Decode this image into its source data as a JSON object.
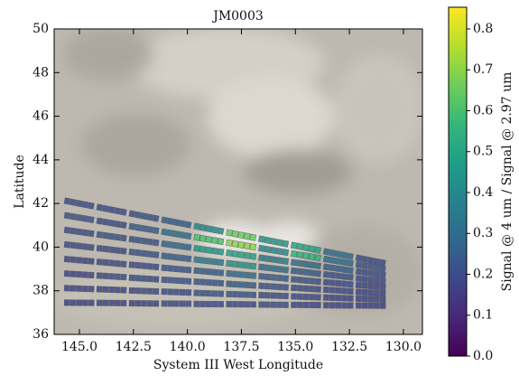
{
  "chart_data": {
    "type": "footprints",
    "title": "JM0003",
    "xlabel": "System III West Longitude",
    "ylabel": "Latitude",
    "xlim": [
      146.17,
      129.12
    ],
    "ylim": [
      36,
      50
    ],
    "xticks": [
      {
        "value": 145,
        "label": "145.0"
      },
      {
        "value": 142.5,
        "label": "142.5"
      },
      {
        "value": 140,
        "label": "140.0"
      },
      {
        "value": 137.5,
        "label": "137.5"
      },
      {
        "value": 135,
        "label": "135.0"
      },
      {
        "value": 132.5,
        "label": "132.5"
      },
      {
        "value": 130,
        "label": "130.0"
      }
    ],
    "yticks": [
      36,
      38,
      40,
      42,
      44,
      46,
      48,
      50
    ],
    "colormap": [
      "#440154",
      "#482878",
      "#3e4989",
      "#31688e",
      "#26828e",
      "#1f9e89",
      "#35b779",
      "#6ece58",
      "#b5de2b",
      "#fde725"
    ],
    "colorbar": {
      "label": "Signal @ 4 um / Signal @ 2.97 um",
      "lim": [
        0,
        0.853
      ],
      "ticks": [
        {
          "value": 0,
          "label": "0.0"
        },
        0.1,
        0.2,
        0.3,
        0.4,
        0.5,
        0.6,
        0.7,
        0.8
      ]
    },
    "rows": [
      {
        "x": [
          145,
          143.5,
          142,
          140.5,
          139,
          137.5,
          136,
          134.5,
          133,
          131.5
        ],
        "y": [
          42.0,
          41.71,
          41.42,
          41.13,
          40.84,
          40.55,
          40.26,
          39.97,
          39.68,
          39.39
        ],
        "values": [
          0.2,
          0.2,
          0.22,
          0.25,
          0.4,
          0.65,
          0.45,
          0.5,
          0.3,
          0.2
        ]
      },
      {
        "x": [
          145,
          143.5,
          142,
          140.5,
          139,
          137.5,
          136,
          134.5,
          133,
          131.5
        ],
        "y": [
          41.35,
          41.1,
          40.85,
          40.6,
          40.35,
          40.1,
          39.85,
          39.6,
          39.35,
          39.1
        ],
        "values": [
          0.22,
          0.2,
          0.25,
          0.3,
          0.6,
          0.7,
          0.4,
          0.55,
          0.3,
          0.22
        ]
      },
      {
        "x": [
          145,
          143.5,
          142,
          140.5,
          139,
          137.5,
          136,
          134.5,
          133,
          131.5
        ],
        "y": [
          40.7,
          40.49,
          40.28,
          40.07,
          39.86,
          39.65,
          39.43,
          39.22,
          39.01,
          38.8
        ],
        "values": [
          0.2,
          0.22,
          0.22,
          0.28,
          0.45,
          0.5,
          0.35,
          0.3,
          0.25,
          0.2
        ]
      },
      {
        "x": [
          145,
          143.5,
          142,
          140.5,
          139,
          137.5,
          136,
          134.5,
          133,
          131.5
        ],
        "y": [
          40.05,
          39.88,
          39.71,
          39.53,
          39.36,
          39.19,
          39.02,
          38.85,
          38.68,
          38.5
        ],
        "values": [
          0.2,
          0.2,
          0.22,
          0.25,
          0.35,
          0.45,
          0.3,
          0.25,
          0.22,
          0.2
        ]
      },
      {
        "x": [
          145,
          143.5,
          142,
          140.5,
          139,
          137.5,
          136,
          134.5,
          133,
          131.5
        ],
        "y": [
          39.4,
          39.27,
          39.14,
          39.0,
          38.87,
          38.74,
          38.61,
          38.47,
          38.34,
          38.21
        ],
        "values": [
          0.18,
          0.2,
          0.2,
          0.22,
          0.25,
          0.3,
          0.25,
          0.22,
          0.2,
          0.18
        ]
      },
      {
        "x": [
          145,
          143.5,
          142,
          140.5,
          139,
          137.5,
          136,
          134.5,
          133,
          131.5
        ],
        "y": [
          38.75,
          38.66,
          38.56,
          38.47,
          38.38,
          38.28,
          38.19,
          38.1,
          38.01,
          37.91
        ],
        "values": [
          0.18,
          0.2,
          0.2,
          0.22,
          0.22,
          0.25,
          0.22,
          0.2,
          0.2,
          0.18
        ]
      },
      {
        "x": [
          145,
          143.5,
          142,
          140.5,
          139,
          137.5,
          136,
          134.5,
          133,
          131.5
        ],
        "y": [
          38.1,
          38.05,
          37.99,
          37.94,
          37.88,
          37.83,
          37.78,
          37.72,
          37.67,
          37.62
        ],
        "values": [
          0.18,
          0.18,
          0.2,
          0.2,
          0.22,
          0.22,
          0.2,
          0.2,
          0.18,
          0.18
        ]
      },
      {
        "x": [
          145,
          143.5,
          142,
          140.5,
          139,
          137.5,
          136,
          134.5,
          133,
          131.5
        ],
        "y": [
          37.45,
          37.44,
          37.42,
          37.41,
          37.39,
          37.38,
          37.36,
          37.35,
          37.33,
          37.32
        ],
        "values": [
          0.17,
          0.18,
          0.18,
          0.2,
          0.2,
          0.2,
          0.2,
          0.18,
          0.18,
          0.17
        ]
      }
    ]
  }
}
